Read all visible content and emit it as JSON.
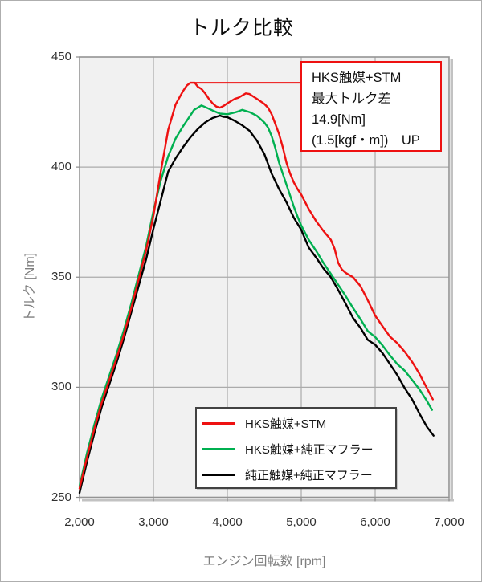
{
  "title": "トルク比較",
  "annotation": {
    "lines": [
      "HKS触媒+STM",
      "最大トルク差",
      "14.9[Nm]",
      "(1.5[kgf・m])　UP"
    ],
    "border_color": "#ee1111"
  },
  "legend": {
    "items": [
      {
        "label": "HKS触媒+STM",
        "color": "#ee1111"
      },
      {
        "label": "HKS触媒+純正マフラー",
        "color": "#00b050"
      },
      {
        "label": "純正触媒+純正マフラー",
        "color": "#000000"
      }
    ]
  },
  "chart_data": {
    "type": "line",
    "title": "トルク比較",
    "xlabel": "エンジン回転数 [rpm]",
    "ylabel": "トルク [Nm]",
    "xlim": [
      2000,
      7000
    ],
    "ylim": [
      250,
      450
    ],
    "x_ticks": [
      2000,
      3000,
      4000,
      5000,
      6000,
      7000
    ],
    "x_tick_labels": [
      "2,000",
      "3,000",
      "4,000",
      "5,000",
      "6,000",
      "7,000"
    ],
    "y_ticks": [
      250,
      300,
      350,
      400,
      450
    ],
    "y_tick_labels": [
      "250",
      "300",
      "350",
      "400",
      "450"
    ],
    "grid": true,
    "legend_position": "lower center",
    "plot_bg": "#f1f1f1",
    "grid_color": "#ababab",
    "border_color": "#949494",
    "max_torque_gain_nm": 14.9,
    "max_torque_gain_kgfm": 1.5,
    "annotation_connector": {
      "from_rpm": 3500,
      "torque": 438.3
    },
    "series": [
      {
        "name": "HKS触媒+STM",
        "color": "#ee1111",
        "points": [
          [
            2000,
            254
          ],
          [
            2100,
            268
          ],
          [
            2200,
            281
          ],
          [
            2300,
            293
          ],
          [
            2400,
            303
          ],
          [
            2500,
            313
          ],
          [
            2600,
            324
          ],
          [
            2700,
            336
          ],
          [
            2800,
            349
          ],
          [
            2900,
            362
          ],
          [
            3000,
            378
          ],
          [
            3100,
            398
          ],
          [
            3200,
            417
          ],
          [
            3300,
            428.5
          ],
          [
            3400,
            434.5
          ],
          [
            3450,
            437
          ],
          [
            3500,
            438.3
          ],
          [
            3560,
            438.3
          ],
          [
            3600,
            436.5
          ],
          [
            3650,
            435.5
          ],
          [
            3700,
            433.5
          ],
          [
            3750,
            431
          ],
          [
            3800,
            429
          ],
          [
            3850,
            427.5
          ],
          [
            3900,
            427
          ],
          [
            3950,
            427.8
          ],
          [
            4000,
            429
          ],
          [
            4100,
            431
          ],
          [
            4150,
            431.5
          ],
          [
            4200,
            432.5
          ],
          [
            4250,
            433.5
          ],
          [
            4300,
            433.2
          ],
          [
            4400,
            431
          ],
          [
            4500,
            428.7
          ],
          [
            4550,
            427
          ],
          [
            4600,
            424
          ],
          [
            4650,
            419.5
          ],
          [
            4700,
            415
          ],
          [
            4750,
            409
          ],
          [
            4800,
            402
          ],
          [
            4850,
            397
          ],
          [
            4900,
            393
          ],
          [
            4950,
            390
          ],
          [
            5000,
            387.5
          ],
          [
            5100,
            381
          ],
          [
            5200,
            375.5
          ],
          [
            5300,
            371
          ],
          [
            5400,
            367
          ],
          [
            5450,
            363
          ],
          [
            5500,
            356.5
          ],
          [
            5550,
            353.5
          ],
          [
            5600,
            352
          ],
          [
            5700,
            350
          ],
          [
            5800,
            346
          ],
          [
            5900,
            339.5
          ],
          [
            6000,
            332.5
          ],
          [
            6100,
            327.7
          ],
          [
            6200,
            323
          ],
          [
            6300,
            320
          ],
          [
            6400,
            316.1
          ],
          [
            6500,
            311.5
          ],
          [
            6600,
            306
          ],
          [
            6700,
            299.6
          ],
          [
            6780,
            294.5
          ]
        ]
      },
      {
        "name": "HKS触媒+純正マフラー",
        "color": "#00b050",
        "points": [
          [
            2000,
            255
          ],
          [
            2100,
            270
          ],
          [
            2200,
            283
          ],
          [
            2300,
            295
          ],
          [
            2400,
            305
          ],
          [
            2500,
            315
          ],
          [
            2600,
            326
          ],
          [
            2700,
            338
          ],
          [
            2800,
            351
          ],
          [
            2900,
            364
          ],
          [
            3000,
            380
          ],
          [
            3100,
            394
          ],
          [
            3200,
            405
          ],
          [
            3300,
            413
          ],
          [
            3400,
            418.5
          ],
          [
            3500,
            423.5
          ],
          [
            3550,
            426
          ],
          [
            3600,
            427
          ],
          [
            3650,
            428
          ],
          [
            3700,
            427.3
          ],
          [
            3800,
            425.7
          ],
          [
            3900,
            424.3
          ],
          [
            4000,
            424
          ],
          [
            4100,
            424.8
          ],
          [
            4150,
            425.3
          ],
          [
            4200,
            426
          ],
          [
            4300,
            425
          ],
          [
            4400,
            423.3
          ],
          [
            4500,
            420.3
          ],
          [
            4550,
            418
          ],
          [
            4600,
            414
          ],
          [
            4650,
            408.5
          ],
          [
            4700,
            402
          ],
          [
            4750,
            397
          ],
          [
            4800,
            392
          ],
          [
            4850,
            387
          ],
          [
            4900,
            382
          ],
          [
            4950,
            377.5
          ],
          [
            5000,
            373.5
          ],
          [
            5100,
            367
          ],
          [
            5200,
            362
          ],
          [
            5300,
            356.5
          ],
          [
            5400,
            351.5
          ],
          [
            5500,
            346.5
          ],
          [
            5600,
            341.5
          ],
          [
            5700,
            336
          ],
          [
            5800,
            331
          ],
          [
            5900,
            325.5
          ],
          [
            6000,
            322.8
          ],
          [
            6100,
            319
          ],
          [
            6200,
            314.5
          ],
          [
            6300,
            310.5
          ],
          [
            6400,
            307.5
          ],
          [
            6500,
            303.3
          ],
          [
            6600,
            299
          ],
          [
            6700,
            293.8
          ],
          [
            6770,
            289.7
          ]
        ]
      },
      {
        "name": "純正触媒+純正マフラー",
        "color": "#000000",
        "points": [
          [
            2000,
            252
          ],
          [
            2100,
            266
          ],
          [
            2200,
            279
          ],
          [
            2300,
            291
          ],
          [
            2400,
            301
          ],
          [
            2500,
            311
          ],
          [
            2600,
            322
          ],
          [
            2700,
            334
          ],
          [
            2800,
            346
          ],
          [
            2900,
            358
          ],
          [
            3000,
            372
          ],
          [
            3100,
            385
          ],
          [
            3200,
            398
          ],
          [
            3300,
            404
          ],
          [
            3400,
            409
          ],
          [
            3500,
            413.5
          ],
          [
            3600,
            417.3
          ],
          [
            3700,
            420.3
          ],
          [
            3800,
            422.3
          ],
          [
            3900,
            423.4
          ],
          [
            3950,
            422.8
          ],
          [
            4000,
            422.7
          ],
          [
            4100,
            421
          ],
          [
            4200,
            419
          ],
          [
            4300,
            416.5
          ],
          [
            4400,
            412
          ],
          [
            4500,
            406
          ],
          [
            4550,
            401.5
          ],
          [
            4600,
            397
          ],
          [
            4700,
            390
          ],
          [
            4800,
            384
          ],
          [
            4900,
            377
          ],
          [
            5000,
            371.5
          ],
          [
            5100,
            363.5
          ],
          [
            5200,
            359
          ],
          [
            5300,
            354
          ],
          [
            5400,
            350
          ],
          [
            5500,
            344.2
          ],
          [
            5600,
            338
          ],
          [
            5700,
            331.5
          ],
          [
            5800,
            327
          ],
          [
            5900,
            321.5
          ],
          [
            6000,
            319.3
          ],
          [
            6100,
            315.5
          ],
          [
            6200,
            310.5
          ],
          [
            6300,
            305.5
          ],
          [
            6400,
            299.6
          ],
          [
            6500,
            294.5
          ],
          [
            6600,
            288
          ],
          [
            6700,
            282
          ],
          [
            6790,
            278
          ]
        ]
      }
    ]
  }
}
